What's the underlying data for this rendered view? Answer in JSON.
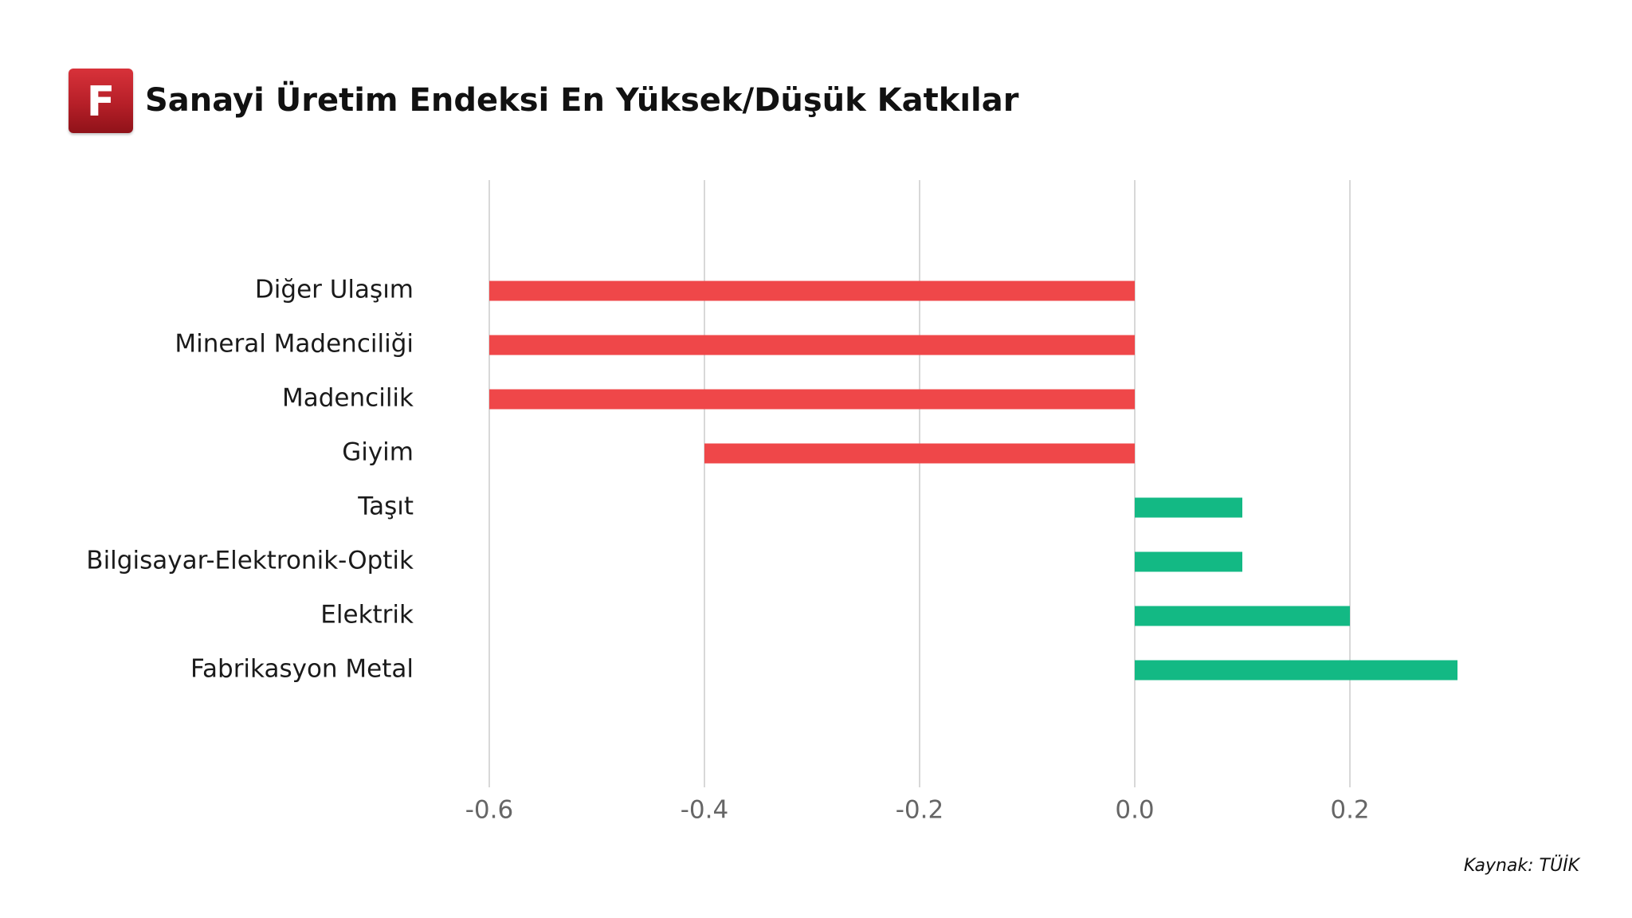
{
  "brand": {
    "logo_letter": "F",
    "logo_color": "#c4262e"
  },
  "header": {
    "title": "Sanayi Üretim Endeksi En Yüksek/Düşük Katkılar"
  },
  "footer": {
    "source": "Kaynak: TÜİK"
  },
  "colors": {
    "negative": "#ef4749",
    "positive": "#13b984",
    "grid": "#cccccc",
    "category_label": "#1a1a1a",
    "tick_label": "#666666"
  },
  "chart_data": {
    "type": "bar",
    "orientation": "horizontal",
    "title": "",
    "xlabel": "",
    "ylabel": "",
    "categories": [
      "Diğer Ulaşım",
      "Mineral Madenciliği",
      "Madencilik",
      "Giyim",
      "Taşıt",
      "Bilgisayar-Elektronik-Optik",
      "Elektrik",
      "Fabrikasyon Metal"
    ],
    "values": [
      -0.6,
      -0.6,
      -0.6,
      -0.4,
      0.1,
      0.1,
      0.2,
      0.3
    ],
    "xlim": [
      -0.6,
      0.3
    ],
    "x_ticks": [
      -0.6,
      -0.4,
      -0.2,
      0.0,
      0.2
    ],
    "x_tick_labels": [
      "-0.6",
      "-0.4",
      "-0.2",
      "0.0",
      "0.2"
    ],
    "grid": "vertical",
    "legend": "none"
  }
}
